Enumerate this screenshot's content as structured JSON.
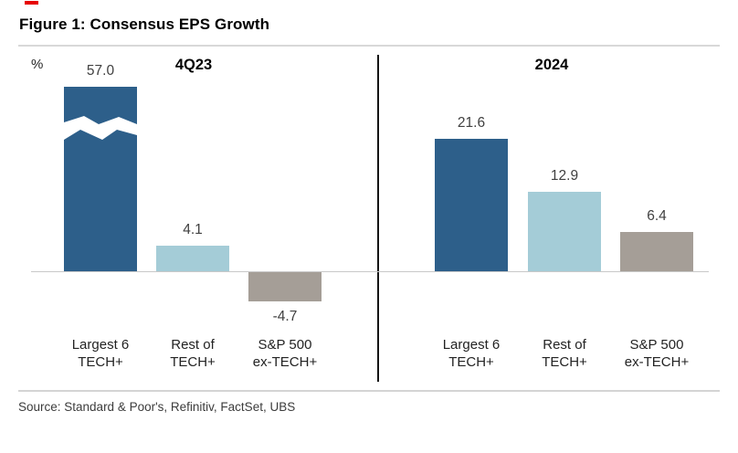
{
  "figure": {
    "title": "Figure 1: Consensus EPS Growth",
    "y_unit": "%",
    "source": "Source: Standard & Poor's, Refinitiv, FactSet, UBS"
  },
  "chart_data": {
    "type": "bar",
    "unit": "%",
    "categories": [
      "Largest 6\nTECH+",
      "Rest of\nTECH+",
      "S&P 500\nex-TECH+"
    ],
    "panels": [
      {
        "title": "4Q23",
        "values": [
          57.0,
          4.1,
          -4.7
        ],
        "labels": [
          "57.0",
          "4.1",
          "-4.7"
        ],
        "broken_bars": [
          true,
          false,
          false
        ]
      },
      {
        "title": "2024",
        "values": [
          21.6,
          12.9,
          6.4
        ],
        "labels": [
          "21.6",
          "12.9",
          "6.4"
        ],
        "broken_bars": [
          false,
          false,
          false
        ]
      }
    ],
    "series_colors": {
      "largest6_tech": "#2d5f8a",
      "rest_of_tech": "#a4ccd7",
      "sp500_ex_tech": "#a59e97"
    },
    "accent_red": "#e60100",
    "baseline_color": "#c9c9c9",
    "axis_break": {
      "panel": "4Q23",
      "category": "Largest 6 TECH+",
      "style": "white zigzag band"
    },
    "legend": "none",
    "grid": "off"
  }
}
